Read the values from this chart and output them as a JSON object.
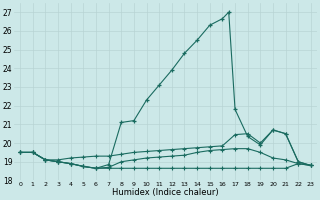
{
  "xlabel": "Humidex (Indice chaleur)",
  "background_color": "#cce8e8",
  "grid_color": "#b8d4d4",
  "line_color": "#1a6b60",
  "xlim": [
    -0.5,
    23.5
  ],
  "ylim": [
    18,
    27.5
  ],
  "yticks": [
    18,
    19,
    20,
    21,
    22,
    23,
    24,
    25,
    26,
    27
  ],
  "xticks": [
    0,
    1,
    2,
    3,
    4,
    5,
    6,
    7,
    8,
    9,
    10,
    11,
    12,
    13,
    14,
    15,
    16,
    17,
    18,
    19,
    20,
    21,
    22,
    23
  ],
  "series1": [
    [
      0,
      19.5
    ],
    [
      1,
      19.5
    ],
    [
      2,
      19.1
    ],
    [
      3,
      19.0
    ],
    [
      4,
      18.9
    ],
    [
      5,
      18.75
    ],
    [
      6,
      18.65
    ],
    [
      7,
      18.85
    ],
    [
      8,
      21.1
    ],
    [
      9,
      21.2
    ],
    [
      10,
      22.3
    ],
    [
      11,
      23.1
    ],
    [
      12,
      23.9
    ],
    [
      13,
      24.8
    ],
    [
      14,
      25.5
    ],
    [
      15,
      26.3
    ],
    [
      16,
      26.65
    ],
    [
      16.5,
      27.0
    ],
    [
      17,
      21.8
    ],
    [
      18,
      20.35
    ],
    [
      19,
      19.9
    ],
    [
      20,
      20.7
    ],
    [
      21,
      20.5
    ],
    [
      22,
      19.0
    ],
    [
      23,
      18.8
    ]
  ],
  "series2": [
    [
      0,
      19.5
    ],
    [
      1,
      19.5
    ],
    [
      2,
      19.1
    ],
    [
      3,
      19.1
    ],
    [
      4,
      19.2
    ],
    [
      5,
      19.25
    ],
    [
      6,
      19.3
    ],
    [
      7,
      19.3
    ],
    [
      8,
      19.4
    ],
    [
      9,
      19.5
    ],
    [
      10,
      19.55
    ],
    [
      11,
      19.6
    ],
    [
      12,
      19.65
    ],
    [
      13,
      19.7
    ],
    [
      14,
      19.75
    ],
    [
      15,
      19.8
    ],
    [
      16,
      19.85
    ],
    [
      17,
      20.45
    ],
    [
      18,
      20.5
    ],
    [
      19,
      20.0
    ],
    [
      20,
      20.7
    ],
    [
      21,
      20.5
    ],
    [
      22,
      19.0
    ],
    [
      23,
      18.8
    ]
  ],
  "series3": [
    [
      0,
      19.5
    ],
    [
      1,
      19.5
    ],
    [
      2,
      19.1
    ],
    [
      3,
      19.0
    ],
    [
      4,
      18.9
    ],
    [
      5,
      18.75
    ],
    [
      6,
      18.65
    ],
    [
      7,
      18.7
    ],
    [
      8,
      19.0
    ],
    [
      9,
      19.1
    ],
    [
      10,
      19.2
    ],
    [
      11,
      19.25
    ],
    [
      12,
      19.3
    ],
    [
      13,
      19.35
    ],
    [
      14,
      19.5
    ],
    [
      15,
      19.6
    ],
    [
      16,
      19.65
    ],
    [
      17,
      19.7
    ],
    [
      18,
      19.7
    ],
    [
      19,
      19.5
    ],
    [
      20,
      19.2
    ],
    [
      21,
      19.1
    ],
    [
      22,
      18.9
    ],
    [
      23,
      18.8
    ]
  ],
  "series4": [
    [
      0,
      19.5
    ],
    [
      1,
      19.5
    ],
    [
      2,
      19.1
    ],
    [
      3,
      19.0
    ],
    [
      4,
      18.9
    ],
    [
      5,
      18.75
    ],
    [
      6,
      18.65
    ],
    [
      7,
      18.65
    ],
    [
      8,
      18.65
    ],
    [
      9,
      18.65
    ],
    [
      10,
      18.65
    ],
    [
      11,
      18.65
    ],
    [
      12,
      18.65
    ],
    [
      13,
      18.65
    ],
    [
      14,
      18.65
    ],
    [
      15,
      18.65
    ],
    [
      16,
      18.65
    ],
    [
      17,
      18.65
    ],
    [
      18,
      18.65
    ],
    [
      19,
      18.65
    ],
    [
      20,
      18.65
    ],
    [
      21,
      18.65
    ],
    [
      22,
      18.9
    ],
    [
      23,
      18.8
    ]
  ]
}
